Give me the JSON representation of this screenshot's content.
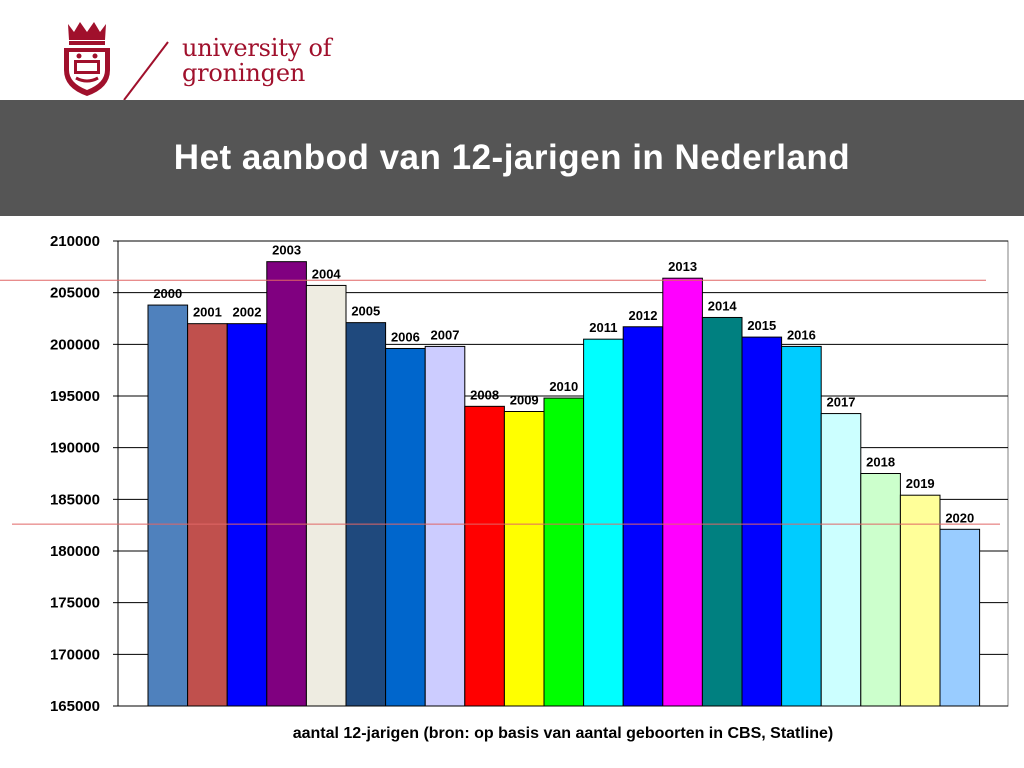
{
  "header": {
    "brand_line1": "university of",
    "brand_line2": "groningen",
    "title": "Het aanbod van 12-jarigen in Nederland"
  },
  "logo": {
    "crest_icon": "university-crest-icon",
    "color": "#a0102c"
  },
  "chart_data": {
    "type": "bar",
    "title": "Het aanbod van 12-jarigen in Nederland",
    "xlabel": "aantal 12-jarigen (bron: op basis van aantal geboorten in CBS, Statline)",
    "ylabel": "",
    "ylim": [
      165000,
      210000
    ],
    "yticks": [
      165000,
      170000,
      175000,
      180000,
      185000,
      190000,
      195000,
      200000,
      205000,
      210000
    ],
    "grid": true,
    "legend": "none",
    "categories": [
      "2000",
      "2001",
      "2002",
      "2003",
      "2004",
      "2005",
      "2006",
      "2007",
      "2008",
      "2009",
      "2010",
      "2011",
      "2012",
      "2013",
      "2014",
      "2015",
      "2016",
      "2017",
      "2018",
      "2019",
      "2020"
    ],
    "values": [
      203800,
      202000,
      202000,
      208000,
      205700,
      202100,
      199600,
      199800,
      194000,
      193500,
      194800,
      200500,
      201700,
      206400,
      202600,
      200700,
      199800,
      193300,
      187500,
      185400,
      182100
    ],
    "colors": [
      "#4f81bd",
      "#c0504d",
      "#0000ff",
      "#800080",
      "#eeece1",
      "#1f497d",
      "#0066cc",
      "#ccccff",
      "#ff0000",
      "#ffff00",
      "#00ff00",
      "#00ffff",
      "#0000ff",
      "#ff00ff",
      "#008080",
      "#0000ff",
      "#00ccff",
      "#ccffff",
      "#ccffcc",
      "#ffff99",
      "#99ccff"
    ],
    "reference_lines": [
      206200,
      182600
    ],
    "reference_line_color": "#e06666"
  }
}
